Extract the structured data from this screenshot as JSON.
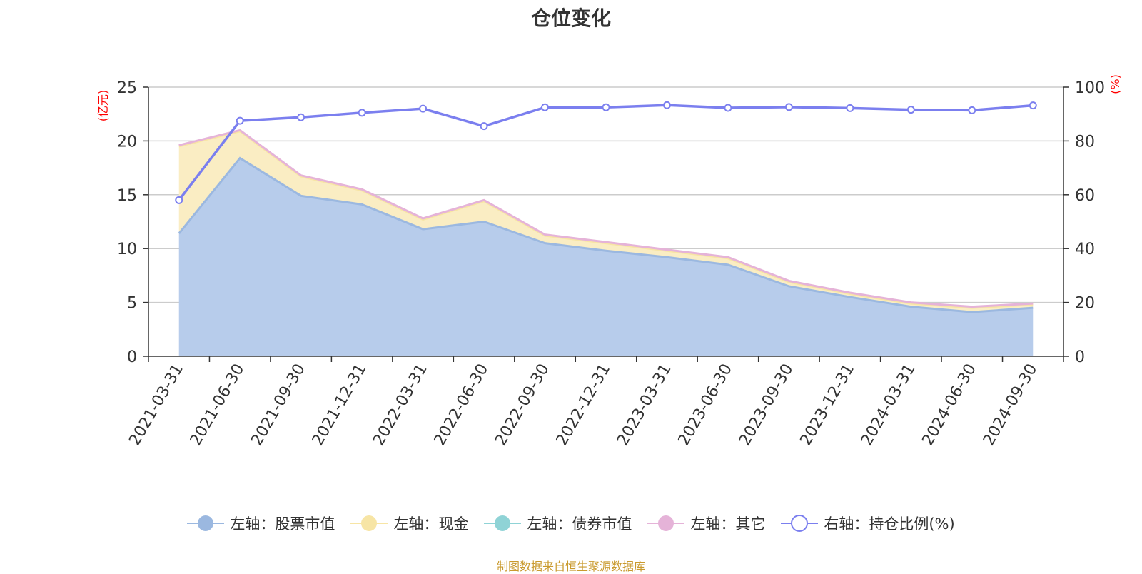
{
  "chart_data": {
    "type": "area",
    "title": "仓位变化",
    "left_axis_unit": "(亿元)",
    "right_axis_unit": "(%)",
    "left_ylim": [
      0,
      25
    ],
    "left_ticks": [
      0,
      5,
      10,
      15,
      20,
      25
    ],
    "right_ylim": [
      0,
      100
    ],
    "right_ticks": [
      0,
      20,
      40,
      60,
      80,
      100
    ],
    "categories": [
      "2021-03-31",
      "2021-06-30",
      "2021-09-30",
      "2021-12-31",
      "2022-03-31",
      "2022-06-30",
      "2022-09-30",
      "2022-12-31",
      "2023-03-31",
      "2023-06-30",
      "2023-09-30",
      "2023-12-31",
      "2024-03-31",
      "2024-06-30",
      "2024-09-30"
    ],
    "series": [
      {
        "name": "左轴：股票市值",
        "axis": "left",
        "kind": "stacked-area",
        "color": "#9bb8e0",
        "fill": "#b7cceb",
        "values": [
          11.4,
          18.4,
          14.9,
          14.1,
          11.8,
          12.5,
          10.5,
          9.8,
          9.2,
          8.5,
          6.5,
          5.5,
          4.6,
          4.1,
          4.5
        ]
      },
      {
        "name": "左轴：现金",
        "axis": "left",
        "kind": "stacked-area",
        "color": "#f7e5a5",
        "fill": "#faedc3",
        "values": [
          8.1,
          2.5,
          1.8,
          1.3,
          0.9,
          1.9,
          0.7,
          0.7,
          0.6,
          0.6,
          0.4,
          0.3,
          0.3,
          0.4,
          0.3
        ]
      },
      {
        "name": "左轴：债券市值",
        "axis": "left",
        "kind": "stacked-area",
        "color": "#8fd3d6",
        "fill": "#a9dfe1",
        "values": [
          0,
          0,
          0,
          0,
          0,
          0,
          0,
          0,
          0,
          0,
          0,
          0,
          0,
          0,
          0
        ]
      },
      {
        "name": "左轴：其它",
        "axis": "left",
        "kind": "stacked-area",
        "color": "#e5b3d8",
        "fill": "#efcbe5",
        "values": [
          0.1,
          0.1,
          0.1,
          0.1,
          0.1,
          0.1,
          0.1,
          0.1,
          0.1,
          0.1,
          0.1,
          0.1,
          0.1,
          0.1,
          0.1
        ]
      },
      {
        "name": "右轴：持仓比例(%)",
        "axis": "right",
        "kind": "line",
        "color": "#7b7fef",
        "values": [
          58.0,
          87.5,
          88.8,
          90.5,
          92.0,
          85.5,
          92.5,
          92.5,
          93.3,
          92.3,
          92.6,
          92.2,
          91.6,
          91.4,
          93.2
        ]
      }
    ],
    "grid": true,
    "legend_position": "bottom"
  },
  "source_note": "制图数据来自恒生聚源数据库"
}
